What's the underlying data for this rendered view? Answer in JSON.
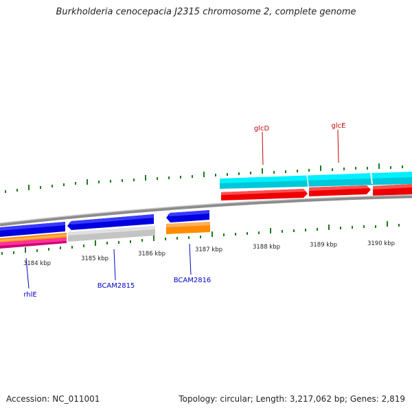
{
  "title": "Burkholderia cenocepacia J2315 chromosome 2, complete genome",
  "footer": {
    "accession": "Accession: NC_011001",
    "summary": "Topology: circular; Length: 3,217,062 bp; Genes: 2,819"
  },
  "scale_labels": [
    "3184 kbp",
    "3185 kbp",
    "3186 kbp",
    "3187 kbp",
    "3188 kbp",
    "3189 kbp",
    "3190 kbp"
  ],
  "gene_labels": [
    {
      "name": "glcD",
      "color": "#cc0000"
    },
    {
      "name": "glcE",
      "color": "#cc0000"
    },
    {
      "name": "rhlE",
      "color": "#0000cc"
    },
    {
      "name": "BCAM2815",
      "color": "#0000cc"
    },
    {
      "name": "BCAM2816",
      "color": "#0000cc"
    }
  ],
  "colors": {
    "tick": "#1a7a1a",
    "backbone": "#8c8c8c",
    "cyan_track": "#00e5f0",
    "red_track": "#ee0000",
    "blue_track": "#0000ee",
    "grey_track": "#c8c8c8",
    "orange_track": "#ff8c00",
    "pink_track": "#ff33aa"
  }
}
